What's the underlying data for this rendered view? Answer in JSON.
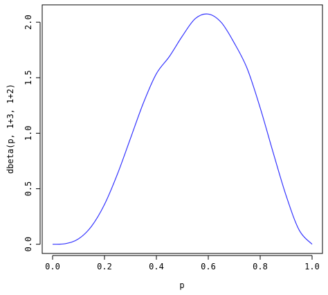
{
  "chart_data": {
    "type": "line",
    "title": "",
    "xlabel": "p",
    "ylabel": "dbeta(p, 1+3, 1+2)",
    "xlim": [
      0,
      1
    ],
    "ylim": [
      0,
      2.0736
    ],
    "x_ticks": [
      0.0,
      0.2,
      0.4,
      0.6,
      0.8,
      1.0
    ],
    "x_tick_labels": [
      "0.0",
      "0.2",
      "0.4",
      "0.6",
      "0.8",
      "1.0"
    ],
    "y_ticks": [
      0.0,
      0.5,
      1.0,
      1.5,
      2.0
    ],
    "y_tick_labels": [
      "0.0",
      "0.5",
      "1.0",
      "1.5",
      "2.0"
    ],
    "grid": false,
    "legend": "none",
    "series": [
      {
        "color": "#3333ff",
        "x": [
          0,
          0.05,
          0.1,
          0.15,
          0.2,
          0.25,
          0.3,
          0.35,
          0.4,
          0.45,
          0.5,
          0.55,
          0.6,
          0.65,
          0.7,
          0.75,
          0.8,
          0.85,
          0.9,
          0.95,
          1
        ],
        "y": [
          0,
          0.0054,
          0.0486,
          0.1619,
          0.3584,
          0.6328,
          0.9526,
          1.2731,
          1.536,
          1.691,
          1.875,
          2.0328,
          2.0736,
          1.9981,
          1.8131,
          1.582,
          1.2288,
          0.8261,
          0.4374,
          0.1287,
          0
        ]
      }
    ]
  }
}
